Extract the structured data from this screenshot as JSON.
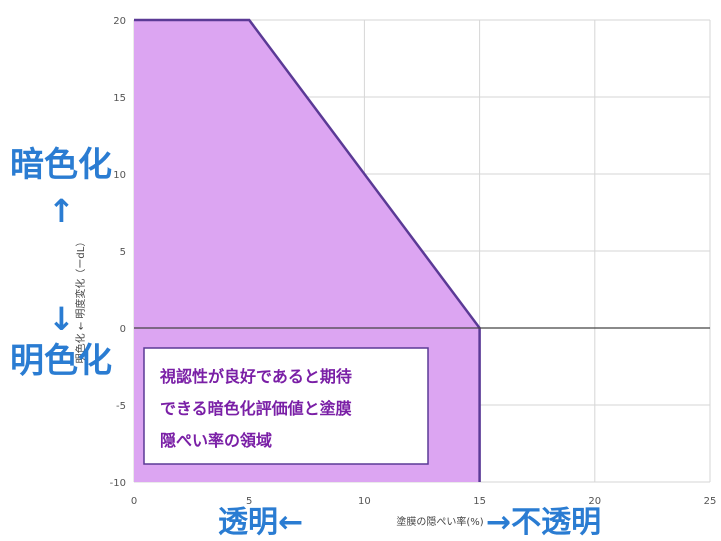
{
  "chart_data": {
    "type": "area",
    "x_ticks": [
      0,
      5,
      10,
      15,
      20,
      25
    ],
    "y_ticks": [
      -10,
      -5,
      0,
      5,
      10,
      15,
      20
    ],
    "x_tick_labels": [
      "0",
      "5",
      "10",
      "15",
      "20",
      "25"
    ],
    "y_tick_labels": [
      "-10",
      "-5",
      "0",
      "5",
      "10",
      "15",
      "20"
    ],
    "xlim": [
      0,
      25
    ],
    "ylim": [
      -10,
      20
    ],
    "xlabel": "塗膜の隠ぺい率(%)",
    "ylabel": "明色化 ← 明度変化（ーdL）",
    "grid": true,
    "region": {
      "fill": "#dca5f2",
      "stroke": "#5b3a96",
      "x": [
        0,
        5,
        15,
        15,
        0
      ],
      "y": [
        20,
        20,
        0,
        -10,
        -10
      ]
    },
    "annotation": {
      "lines": [
        "視認性が良好であると期待",
        "できる暗色化評価値と塗膜",
        "隠ぺい率の領域"
      ],
      "color": "#7a1fa6"
    },
    "side_labels": {
      "darken": "暗色化",
      "lighten": "明色化",
      "up_arrow": "↑",
      "down_arrow": "↓",
      "transparent": "透明←",
      "opaque": "→不透明",
      "color": "#2a7cd2"
    }
  }
}
